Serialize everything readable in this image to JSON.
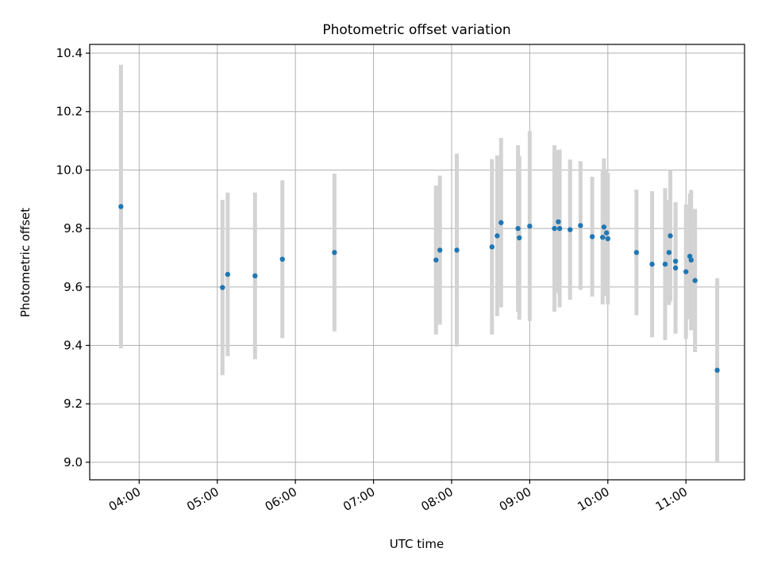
{
  "chart_data": {
    "type": "scatter",
    "title": "Photometric offset variation",
    "xlabel": "UTC time",
    "ylabel": "Photometric offset",
    "xlim": [
      "03:22",
      "11:45"
    ],
    "ylim": [
      8.94,
      10.43
    ],
    "x_ticks": [
      "04:00",
      "05:00",
      "06:00",
      "07:00",
      "08:00",
      "09:00",
      "10:00",
      "11:00"
    ],
    "y_ticks": [
      9.0,
      9.2,
      9.4,
      9.6,
      9.8,
      10.0,
      10.2,
      10.4
    ],
    "y_tick_labels": [
      "9.0",
      "9.2",
      "9.4",
      "9.6",
      "9.8",
      "10.0",
      "10.2",
      "10.4"
    ],
    "grid": true,
    "colors": {
      "point": "#1f77b4",
      "errorbar": "#d3d3d3",
      "grid": "#b0b0b0"
    },
    "errorbar_type": "yerr",
    "points": [
      {
        "x": "03:46",
        "y": 9.875,
        "yerr": 0.485
      },
      {
        "x": "05:04",
        "y": 9.598,
        "yerr": 0.3
      },
      {
        "x": "05:08",
        "y": 9.643,
        "yerr": 0.28
      },
      {
        "x": "05:29",
        "y": 9.638,
        "yerr": 0.285
      },
      {
        "x": "05:50",
        "y": 9.695,
        "yerr": 0.27
      },
      {
        "x": "06:30",
        "y": 9.718,
        "yerr": 0.27
      },
      {
        "x": "07:48",
        "y": 9.692,
        "yerr": 0.255
      },
      {
        "x": "07:51",
        "y": 9.726,
        "yerr": 0.255
      },
      {
        "x": "08:04",
        "y": 9.726,
        "yerr": 0.33
      },
      {
        "x": "08:31",
        "y": 9.737,
        "yerr": 0.3
      },
      {
        "x": "08:35",
        "y": 9.775,
        "yerr": 0.275
      },
      {
        "x": "08:38",
        "y": 9.82,
        "yerr": 0.29
      },
      {
        "x": "08:51",
        "y": 9.8,
        "yerr": 0.285
      },
      {
        "x": "08:52",
        "y": 9.768,
        "yerr": 0.28
      },
      {
        "x": "09:00",
        "y": 9.808,
        "yerr": 0.325
      },
      {
        "x": "09:19",
        "y": 9.8,
        "yerr": 0.285
      },
      {
        "x": "09:22",
        "y": 9.823,
        "yerr": 0.245
      },
      {
        "x": "09:23",
        "y": 9.8,
        "yerr": 0.27
      },
      {
        "x": "09:31",
        "y": 9.796,
        "yerr": 0.24
      },
      {
        "x": "09:39",
        "y": 9.81,
        "yerr": 0.22
      },
      {
        "x": "09:48",
        "y": 9.772,
        "yerr": 0.205
      },
      {
        "x": "09:56",
        "y": 9.77,
        "yerr": 0.23
      },
      {
        "x": "09:57",
        "y": 9.805,
        "yerr": 0.235
      },
      {
        "x": "09:59",
        "y": 9.785,
        "yerr": 0.215
      },
      {
        "x": "10:00",
        "y": 9.765,
        "yerr": 0.225
      },
      {
        "x": "10:22",
        "y": 9.718,
        "yerr": 0.215
      },
      {
        "x": "10:34",
        "y": 9.678,
        "yerr": 0.25
      },
      {
        "x": "10:44",
        "y": 9.678,
        "yerr": 0.26
      },
      {
        "x": "10:47",
        "y": 9.718,
        "yerr": 0.18
      },
      {
        "x": "10:48",
        "y": 9.775,
        "yerr": 0.225
      },
      {
        "x": "10:52",
        "y": 9.688,
        "yerr": 0.2
      },
      {
        "x": "10:52",
        "y": 9.665,
        "yerr": 0.225
      },
      {
        "x": "11:00",
        "y": 9.652,
        "yerr": 0.23
      },
      {
        "x": "11:03",
        "y": 9.705,
        "yerr": 0.215
      },
      {
        "x": "11:04",
        "y": 9.692,
        "yerr": 0.24
      },
      {
        "x": "11:07",
        "y": 9.622,
        "yerr": 0.245
      },
      {
        "x": "11:24",
        "y": 9.315,
        "yerr": 0.315
      }
    ]
  }
}
